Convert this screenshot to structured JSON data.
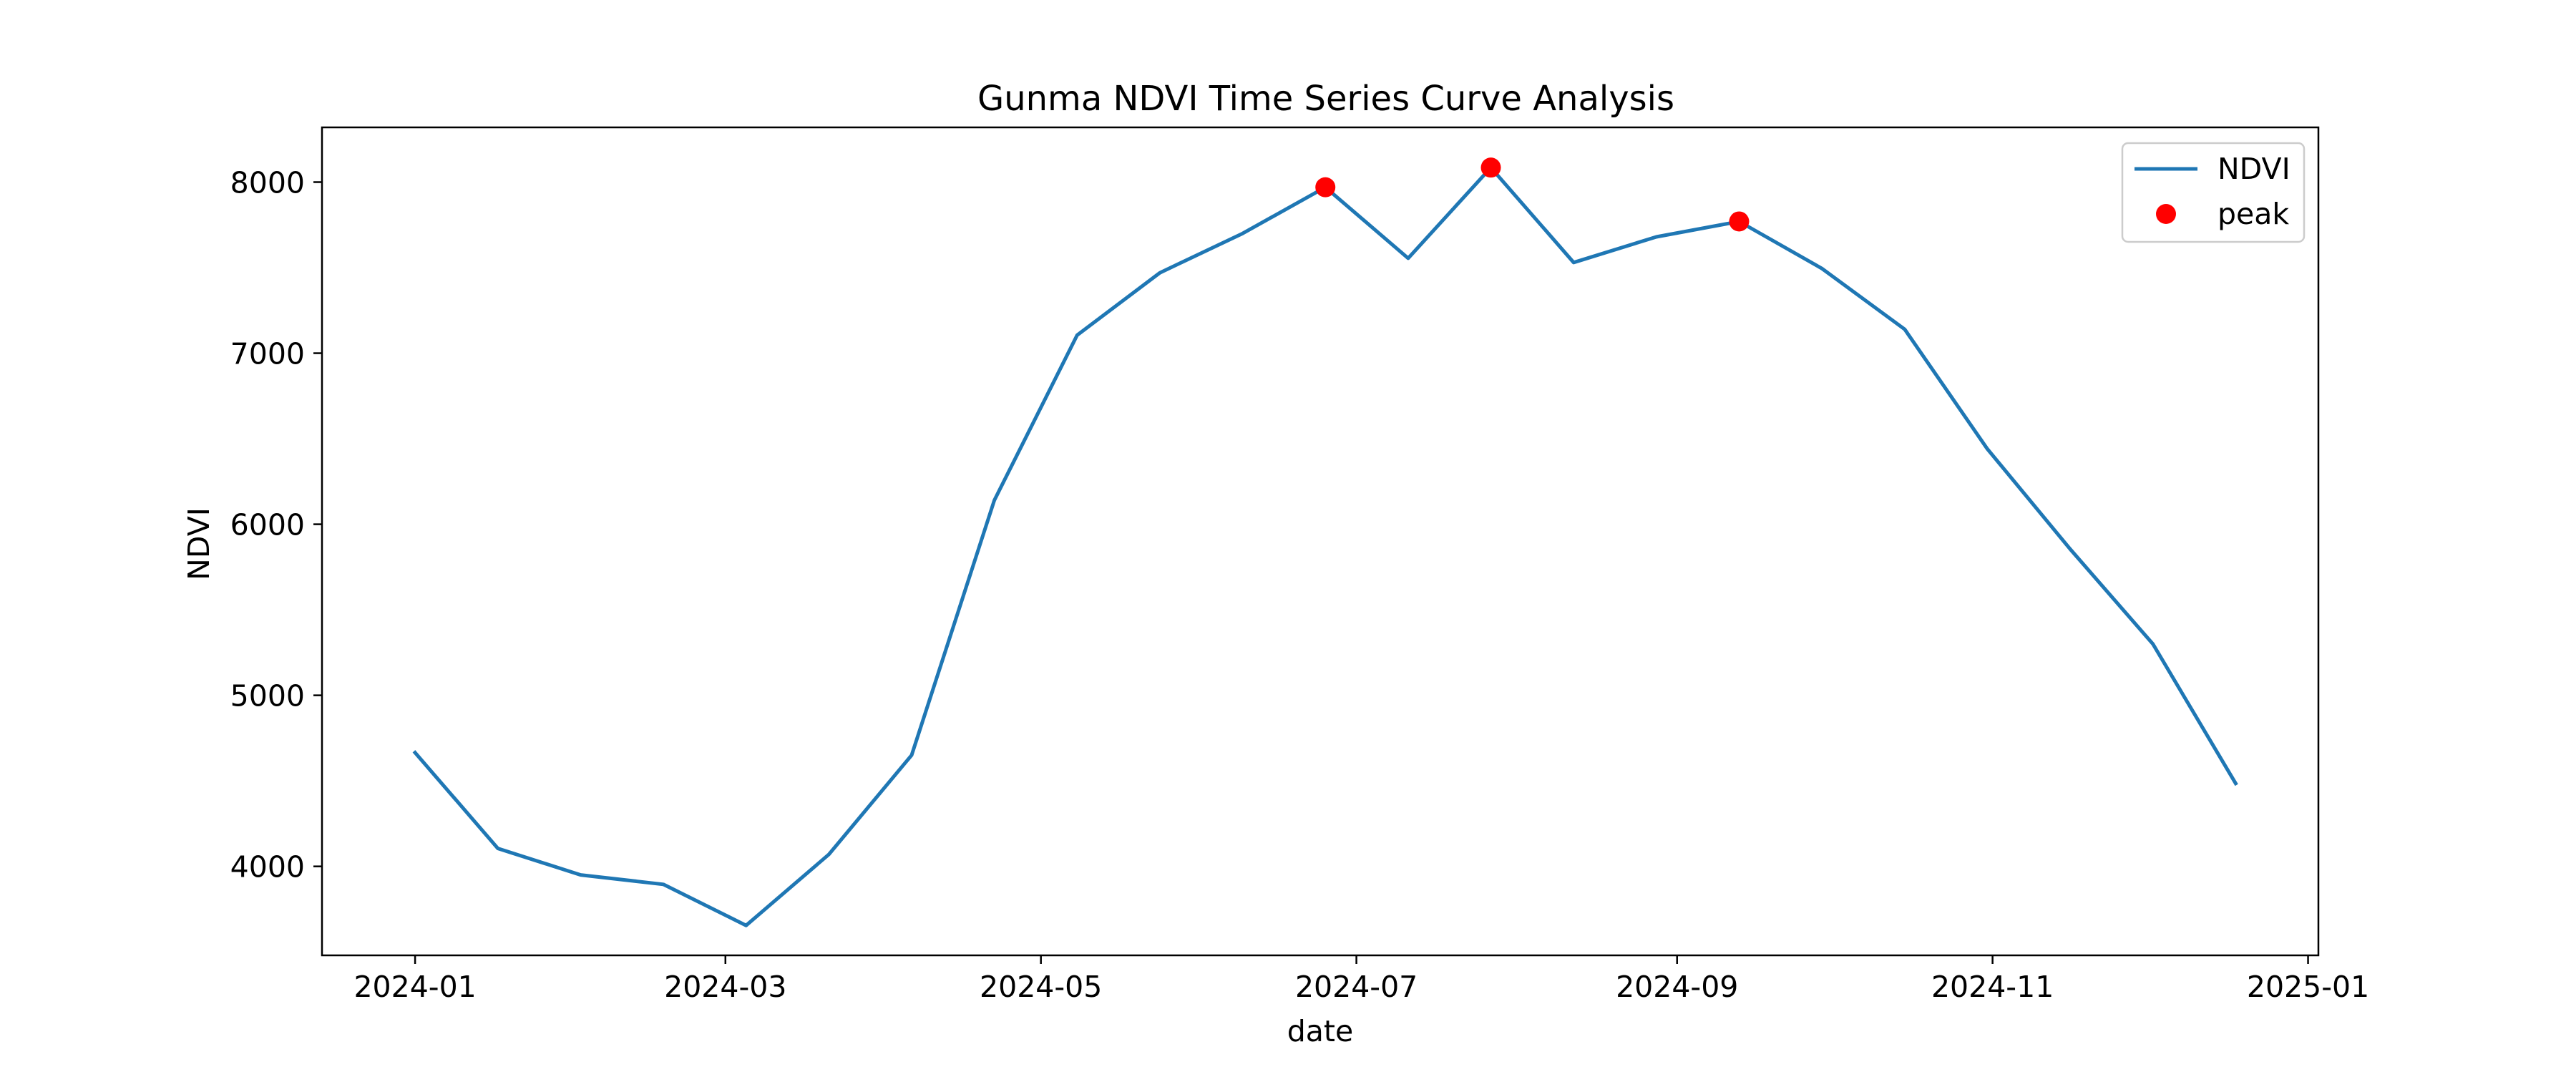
{
  "chart_data": {
    "type": "line",
    "title": "Gunma NDVI Time Series Curve Analysis",
    "xlabel": "date",
    "ylabel": "NDVI",
    "xlim": [
      "2023-12-14",
      "2025-01-03"
    ],
    "ylim": [
      3480,
      8320
    ],
    "x_ticks": [
      {
        "date": "2024-01-01",
        "label": "2024-01"
      },
      {
        "date": "2024-03-01",
        "label": "2024-03"
      },
      {
        "date": "2024-05-01",
        "label": "2024-05"
      },
      {
        "date": "2024-07-01",
        "label": "2024-07"
      },
      {
        "date": "2024-09-01",
        "label": "2024-09"
      },
      {
        "date": "2024-11-01",
        "label": "2024-11"
      },
      {
        "date": "2025-01-01",
        "label": "2025-01"
      }
    ],
    "y_ticks": [
      {
        "value": 4000,
        "label": "4000"
      },
      {
        "value": 5000,
        "label": "5000"
      },
      {
        "value": 6000,
        "label": "6000"
      },
      {
        "value": 7000,
        "label": "7000"
      },
      {
        "value": 8000,
        "label": "8000"
      }
    ],
    "grid": false,
    "legend_position": "top-right",
    "series": [
      {
        "name": "NDVI",
        "kind": "line",
        "color": "#1f77b4",
        "points": [
          {
            "x": "2024-01-01",
            "y": 4665
          },
          {
            "x": "2024-01-17",
            "y": 4105
          },
          {
            "x": "2024-02-02",
            "y": 3950
          },
          {
            "x": "2024-02-18",
            "y": 3895
          },
          {
            "x": "2024-03-05",
            "y": 3655
          },
          {
            "x": "2024-03-21",
            "y": 4070
          },
          {
            "x": "2024-04-06",
            "y": 4650
          },
          {
            "x": "2024-04-22",
            "y": 6140
          },
          {
            "x": "2024-05-08",
            "y": 7105
          },
          {
            "x": "2024-05-24",
            "y": 7470
          },
          {
            "x": "2024-06-09",
            "y": 7700
          },
          {
            "x": "2024-06-25",
            "y": 7970
          },
          {
            "x": "2024-07-11",
            "y": 7555
          },
          {
            "x": "2024-07-27",
            "y": 8085
          },
          {
            "x": "2024-08-12",
            "y": 7530
          },
          {
            "x": "2024-08-28",
            "y": 7680
          },
          {
            "x": "2024-09-13",
            "y": 7770
          },
          {
            "x": "2024-09-29",
            "y": 7495
          },
          {
            "x": "2024-10-15",
            "y": 7140
          },
          {
            "x": "2024-10-31",
            "y": 6440
          },
          {
            "x": "2024-11-16",
            "y": 5855
          },
          {
            "x": "2024-12-02",
            "y": 5300
          },
          {
            "x": "2024-12-18",
            "y": 4485
          }
        ]
      },
      {
        "name": "peak",
        "kind": "scatter",
        "color": "#ff0000",
        "points": [
          {
            "x": "2024-06-25",
            "y": 7970
          },
          {
            "x": "2024-07-27",
            "y": 8085
          },
          {
            "x": "2024-09-13",
            "y": 7770
          }
        ]
      }
    ]
  }
}
